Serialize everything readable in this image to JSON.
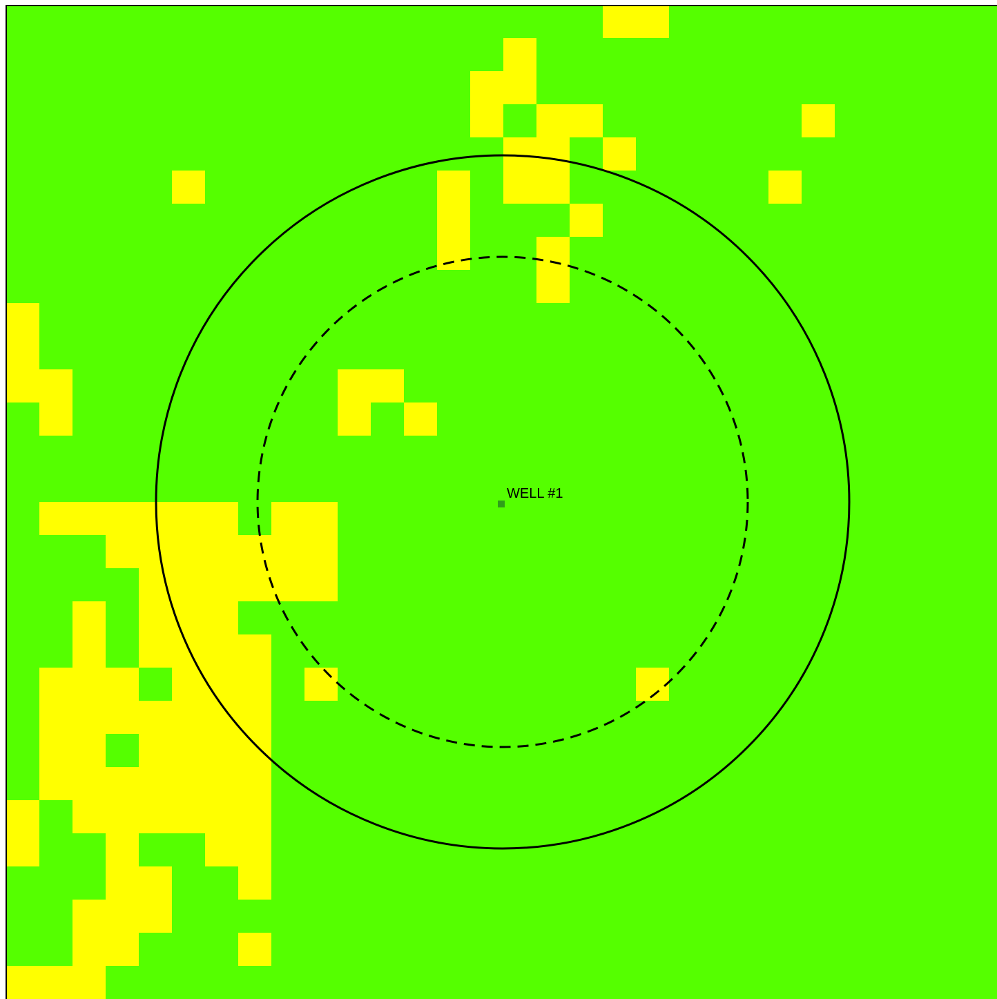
{
  "map": {
    "colors": {
      "background": "#55ff00",
      "highlight": "#ffff00",
      "well_marker": "#2f9e1a",
      "ring_stroke": "#000000"
    },
    "grid_columns": 30,
    "grid_rows": 30,
    "highlighted_cells": [
      [
        18,
        0
      ],
      [
        19,
        0
      ],
      [
        15,
        1
      ],
      [
        14,
        2
      ],
      [
        15,
        2
      ],
      [
        14,
        3
      ],
      [
        16,
        3
      ],
      [
        17,
        3
      ],
      [
        24,
        3
      ],
      [
        15,
        4
      ],
      [
        16,
        4
      ],
      [
        18,
        4
      ],
      [
        5,
        5
      ],
      [
        13,
        5
      ],
      [
        15,
        5
      ],
      [
        16,
        5
      ],
      [
        23,
        5
      ],
      [
        13,
        6
      ],
      [
        17,
        6
      ],
      [
        13,
        7
      ],
      [
        16,
        7
      ],
      [
        16,
        8
      ],
      [
        0,
        9
      ],
      [
        0,
        10
      ],
      [
        0,
        11
      ],
      [
        1,
        11
      ],
      [
        10,
        11
      ],
      [
        11,
        11
      ],
      [
        1,
        12
      ],
      [
        10,
        12
      ],
      [
        12,
        12
      ],
      [
        1,
        15
      ],
      [
        2,
        15
      ],
      [
        3,
        15
      ],
      [
        4,
        15
      ],
      [
        5,
        15
      ],
      [
        6,
        15
      ],
      [
        8,
        15
      ],
      [
        9,
        15
      ],
      [
        3,
        16
      ],
      [
        4,
        16
      ],
      [
        5,
        16
      ],
      [
        6,
        16
      ],
      [
        7,
        16
      ],
      [
        8,
        16
      ],
      [
        9,
        16
      ],
      [
        4,
        17
      ],
      [
        5,
        17
      ],
      [
        6,
        17
      ],
      [
        7,
        17
      ],
      [
        8,
        17
      ],
      [
        9,
        17
      ],
      [
        2,
        18
      ],
      [
        4,
        18
      ],
      [
        5,
        18
      ],
      [
        6,
        18
      ],
      [
        2,
        19
      ],
      [
        4,
        19
      ],
      [
        5,
        19
      ],
      [
        6,
        19
      ],
      [
        7,
        19
      ],
      [
        1,
        20
      ],
      [
        2,
        20
      ],
      [
        3,
        20
      ],
      [
        5,
        20
      ],
      [
        6,
        20
      ],
      [
        7,
        20
      ],
      [
        9,
        20
      ],
      [
        19,
        20
      ],
      [
        1,
        21
      ],
      [
        2,
        21
      ],
      [
        3,
        21
      ],
      [
        4,
        21
      ],
      [
        5,
        21
      ],
      [
        6,
        21
      ],
      [
        7,
        21
      ],
      [
        1,
        22
      ],
      [
        2,
        22
      ],
      [
        4,
        22
      ],
      [
        5,
        22
      ],
      [
        6,
        22
      ],
      [
        7,
        22
      ],
      [
        1,
        23
      ],
      [
        2,
        23
      ],
      [
        3,
        23
      ],
      [
        4,
        23
      ],
      [
        5,
        23
      ],
      [
        6,
        23
      ],
      [
        7,
        23
      ],
      [
        0,
        24
      ],
      [
        2,
        24
      ],
      [
        3,
        24
      ],
      [
        4,
        24
      ],
      [
        5,
        24
      ],
      [
        6,
        24
      ],
      [
        7,
        24
      ],
      [
        0,
        25
      ],
      [
        3,
        25
      ],
      [
        6,
        25
      ],
      [
        7,
        25
      ],
      [
        3,
        26
      ],
      [
        4,
        26
      ],
      [
        7,
        26
      ],
      [
        2,
        27
      ],
      [
        3,
        27
      ],
      [
        4,
        27
      ],
      [
        2,
        28
      ],
      [
        3,
        28
      ],
      [
        7,
        28
      ],
      [
        0,
        29
      ],
      [
        1,
        29
      ],
      [
        2,
        29
      ]
    ],
    "well": {
      "label": "WELL #1"
    },
    "rings": [
      {
        "style": "solid"
      },
      {
        "style": "dashed"
      }
    ]
  }
}
